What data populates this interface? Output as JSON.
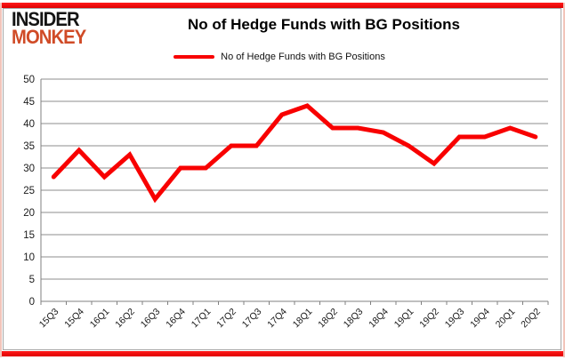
{
  "brand": {
    "line1": "INSIDER",
    "line2": "MONKEY",
    "accent_color": "#d04b27",
    "dark_color": "#141414"
  },
  "header": {
    "title": "No of Hedge Funds with BG Positions"
  },
  "legend": {
    "label": "No of Hedge Funds with BG Positions",
    "marker_color": "#f80000"
  },
  "colors": {
    "line": "#f80000",
    "border_bar": "#ee0505",
    "side_edge": "#f2c4ba",
    "grid": "#8c8c8c",
    "axis": "#808080",
    "tick_text": "#1a1a1a"
  },
  "chart_data": {
    "type": "line",
    "title": "No of Hedge Funds with BG Positions",
    "categories": [
      "15Q3",
      "15Q4",
      "16Q1",
      "16Q2",
      "16Q3",
      "16Q4",
      "17Q1",
      "17Q2",
      "17Q3",
      "17Q4",
      "18Q1",
      "18Q2",
      "18Q3",
      "18Q4",
      "19Q1",
      "19Q2",
      "19Q3",
      "19Q4",
      "20Q1",
      "20Q2"
    ],
    "series": [
      {
        "name": "No of Hedge Funds with BG Positions",
        "values": [
          28,
          34,
          28,
          33,
          23,
          30,
          30,
          35,
          35,
          42,
          44,
          39,
          39,
          38,
          35,
          31,
          37,
          37,
          39,
          37
        ]
      }
    ],
    "xlabel": "",
    "ylabel": "",
    "ylim": [
      0,
      50
    ],
    "yticks": [
      0,
      5,
      10,
      15,
      20,
      25,
      30,
      35,
      40,
      45,
      50
    ],
    "grid": true,
    "legend_position": "top-center",
    "x_tick_rotation": -45
  }
}
